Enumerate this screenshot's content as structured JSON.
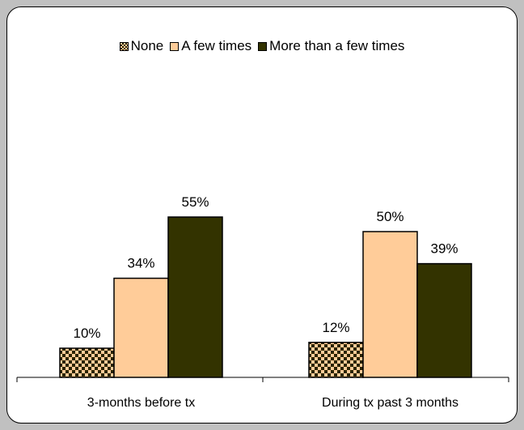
{
  "chart_data": {
    "type": "bar",
    "categories": [
      "3-months before tx",
      "During tx past 3 months"
    ],
    "series": [
      {
        "name": "None",
        "values": [
          10,
          12
        ],
        "labels": [
          "10%",
          "12%"
        ],
        "color": "#3a2f00",
        "pattern": "checker"
      },
      {
        "name": "A few times",
        "values": [
          34,
          50
        ],
        "labels": [
          "34%",
          "50%"
        ],
        "color": "#ffcc99"
      },
      {
        "name": "More than a few times",
        "values": [
          55,
          39
        ],
        "labels": [
          "55%",
          "39%"
        ],
        "color": "#333300"
      }
    ],
    "ylim": [
      0,
      100
    ],
    "legend_position": "top",
    "grid": false
  }
}
